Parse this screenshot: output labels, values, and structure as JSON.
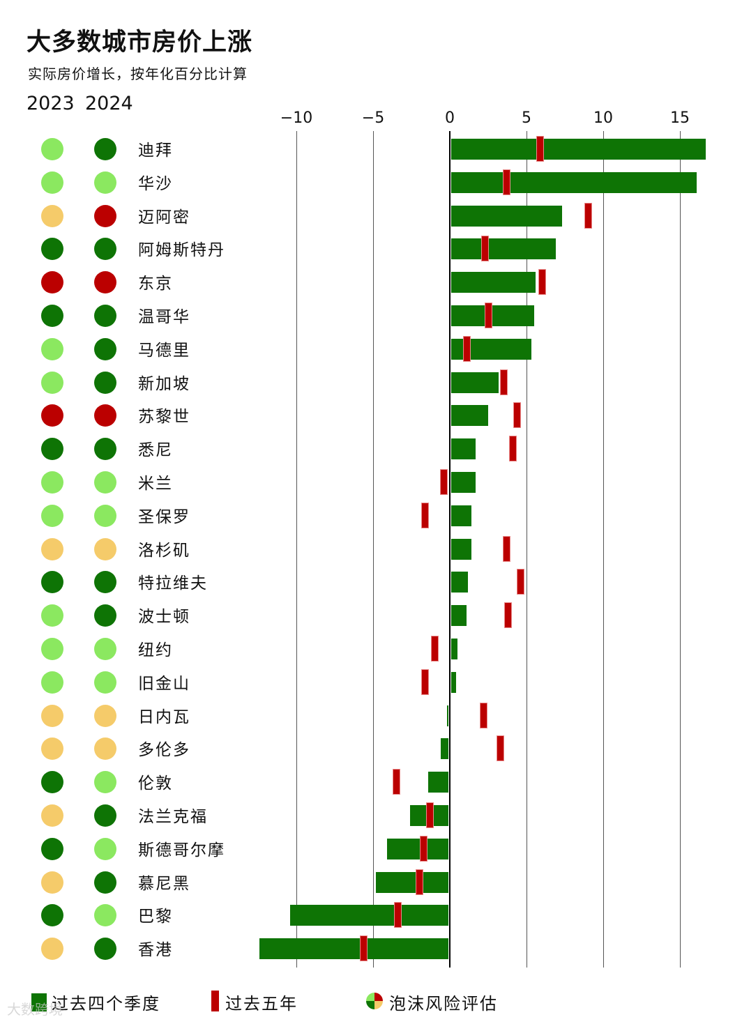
{
  "header": {
    "title": "大多数城市房价上涨",
    "subtitle": "实际房价增长，按年化百分比计算",
    "year_labels": [
      "2023",
      "2024"
    ]
  },
  "axis": {
    "ticks": [
      "−10",
      "−5",
      "0",
      "5",
      "10",
      "15"
    ],
    "tick_values": [
      -10,
      -5,
      0,
      5,
      10,
      15
    ]
  },
  "colors": {
    "bar": "#0e7405",
    "marker": "#bb0000",
    "risk_dark_green": "#0e7405",
    "risk_light_green": "#8be860",
    "risk_yellow": "#f5cb6a",
    "risk_red": "#bb0000"
  },
  "legend": {
    "bar_label": "过去四个季度",
    "marker_label": "过去五年",
    "risk_label": "泡沫风险评估"
  },
  "watermark": "大数跨境",
  "chart_data": {
    "type": "bar",
    "title": "大多数城市房价上涨",
    "subtitle": "实际房价增长，按年化百分比计算",
    "xlabel": "",
    "ylabel": "",
    "xlim": [
      -13,
      17
    ],
    "grid": true,
    "orientation": "horizontal",
    "legend_position": "bottom",
    "categories": [
      "迪拜",
      "华沙",
      "迈阿密",
      "阿姆斯特丹",
      "东京",
      "温哥华",
      "马德里",
      "新加坡",
      "苏黎世",
      "悉尼",
      "米兰",
      "圣保罗",
      "洛杉矶",
      "特拉维夫",
      "波士顿",
      "纽约",
      "旧金山",
      "日内瓦",
      "多伦多",
      "伦敦",
      "法兰克福",
      "斯德哥尔摩",
      "慕尼黑",
      "巴黎",
      "香港"
    ],
    "series": [
      {
        "name": "过去四个季度",
        "kind": "bar",
        "values": [
          16.7,
          16.1,
          7.3,
          6.9,
          5.6,
          5.5,
          5.3,
          3.2,
          2.5,
          1.7,
          1.7,
          1.4,
          1.4,
          1.2,
          1.1,
          0.5,
          0.4,
          -0.2,
          -0.6,
          -1.4,
          -2.6,
          -4.1,
          -4.8,
          -10.4,
          -12.4
        ]
      },
      {
        "name": "过去五年",
        "kind": "marker",
        "values": [
          5.9,
          3.7,
          9.0,
          2.3,
          6.0,
          2.5,
          1.1,
          3.5,
          4.4,
          4.1,
          -0.4,
          -1.6,
          3.7,
          4.6,
          3.8,
          -1.0,
          -1.6,
          2.2,
          3.3,
          -3.5,
          -1.3,
          -1.7,
          -2.0,
          -3.4,
          -5.6
        ]
      }
    ],
    "bubble_risk": {
      "2023": [
        "light_green",
        "light_green",
        "yellow",
        "dark_green",
        "red",
        "dark_green",
        "light_green",
        "light_green",
        "red",
        "dark_green",
        "light_green",
        "light_green",
        "yellow",
        "dark_green",
        "light_green",
        "light_green",
        "light_green",
        "yellow",
        "yellow",
        "dark_green",
        "yellow",
        "dark_green",
        "yellow",
        "dark_green",
        "yellow"
      ],
      "2024": [
        "dark_green",
        "light_green",
        "red",
        "dark_green",
        "red",
        "dark_green",
        "dark_green",
        "dark_green",
        "red",
        "dark_green",
        "light_green",
        "light_green",
        "yellow",
        "dark_green",
        "dark_green",
        "light_green",
        "light_green",
        "yellow",
        "yellow",
        "light_green",
        "dark_green",
        "light_green",
        "dark_green",
        "light_green",
        "dark_green"
      ]
    }
  }
}
